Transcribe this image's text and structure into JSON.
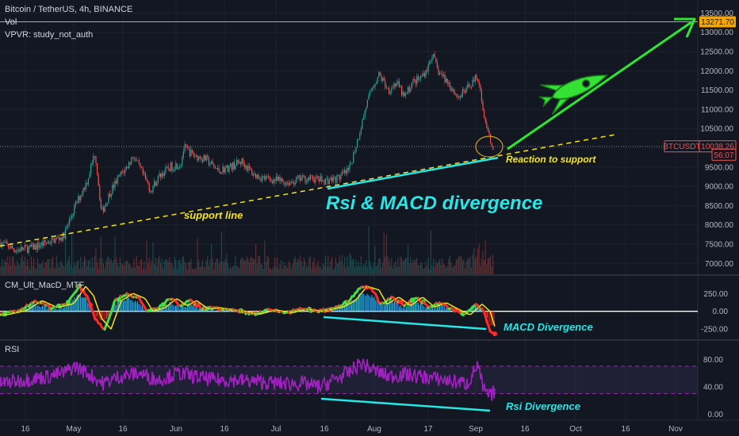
{
  "chart_data": {
    "type": "candlestick",
    "symbol_title": "Bitcoin / TetherUS, 4h, BINANCE",
    "indicators": [
      "Vol",
      "VPVR: study_not_auth"
    ],
    "x_axis": {
      "ticks": [
        "16",
        "May",
        "16",
        "Jun",
        "16",
        "Jul",
        "16",
        "Aug",
        "17",
        "Sep",
        "16",
        "Oct",
        "16",
        "Nov"
      ]
    },
    "price_axis": {
      "ticks": [
        "13500.00",
        "13000.00",
        "12500.00",
        "12000.00",
        "11500.00",
        "11000.00",
        "10500.00",
        "10000.00",
        "9500.00",
        "9000.00",
        "8500.00",
        "8000.00",
        "7500.00",
        "7000.00"
      ],
      "range": [
        6800,
        13550
      ]
    },
    "price_path": [
      [
        0,
        7550
      ],
      [
        20,
        7350
      ],
      [
        40,
        7400
      ],
      [
        60,
        7550
      ],
      [
        80,
        7700
      ],
      [
        95,
        8500
      ],
      [
        110,
        9150
      ],
      [
        120,
        9900
      ],
      [
        128,
        8300
      ],
      [
        140,
        8900
      ],
      [
        152,
        9300
      ],
      [
        160,
        9500
      ],
      [
        168,
        9800
      ],
      [
        178,
        9400
      ],
      [
        190,
        8900
      ],
      [
        202,
        9300
      ],
      [
        215,
        9500
      ],
      [
        228,
        9600
      ],
      [
        232,
        10000
      ],
      [
        245,
        9800
      ],
      [
        260,
        9700
      ],
      [
        275,
        9400
      ],
      [
        290,
        9500
      ],
      [
        305,
        9650
      ],
      [
        320,
        9300
      ],
      [
        335,
        9200
      ],
      [
        350,
        9150
      ],
      [
        365,
        9100
      ],
      [
        380,
        9200
      ],
      [
        395,
        9200
      ],
      [
        410,
        9150
      ],
      [
        425,
        9200
      ],
      [
        440,
        9400
      ],
      [
        452,
        10300
      ],
      [
        462,
        11100
      ],
      [
        470,
        11600
      ],
      [
        478,
        11900
      ],
      [
        490,
        11500
      ],
      [
        500,
        11700
      ],
      [
        510,
        11300
      ],
      [
        520,
        11700
      ],
      [
        530,
        11800
      ],
      [
        540,
        12100
      ],
      [
        545,
        12450
      ],
      [
        552,
        12000
      ],
      [
        565,
        11700
      ],
      [
        578,
        11300
      ],
      [
        590,
        11550
      ],
      [
        602,
        11900
      ],
      [
        606,
        11500
      ],
      [
        612,
        10600
      ],
      [
        617,
        10250
      ],
      [
        622,
        10050
      ]
    ],
    "price_labels": [
      {
        "label": "13271.70",
        "value": 13271.7,
        "style": "resistance"
      },
      {
        "label": "BTCUSDT",
        "value": 10038.26,
        "style": "symbol"
      },
      {
        "label": "10038.26",
        "value": 10038.26,
        "style": "last"
      },
      {
        "label": "56:07",
        "value": 9820,
        "style": "timer"
      }
    ],
    "support_line": {
      "label": "support line",
      "from": [
        0,
        7450
      ],
      "to": [
        775,
        10340
      ]
    },
    "macd_panel": {
      "title": "CM_Ult_MacD_MTF",
      "ticks": [
        "250.00",
        "0.00",
        "-250.00"
      ],
      "range": [
        -360,
        420
      ],
      "zero_line": 0,
      "path": [
        [
          0,
          -50
        ],
        [
          25,
          10
        ],
        [
          45,
          150
        ],
        [
          65,
          50
        ],
        [
          85,
          110
        ],
        [
          100,
          350
        ],
        [
          110,
          220
        ],
        [
          120,
          -100
        ],
        [
          132,
          -250
        ],
        [
          145,
          150
        ],
        [
          160,
          250
        ],
        [
          175,
          180
        ],
        [
          185,
          0
        ],
        [
          200,
          50
        ],
        [
          215,
          180
        ],
        [
          228,
          80
        ],
        [
          240,
          150
        ],
        [
          255,
          30
        ],
        [
          270,
          50
        ],
        [
          285,
          20
        ],
        [
          300,
          0
        ],
        [
          320,
          -40
        ],
        [
          340,
          20
        ],
        [
          360,
          -20
        ],
        [
          380,
          30
        ],
        [
          400,
          0
        ],
        [
          425,
          60
        ],
        [
          440,
          150
        ],
        [
          455,
          350
        ],
        [
          470,
          300
        ],
        [
          480,
          100
        ],
        [
          495,
          200
        ],
        [
          510,
          80
        ],
        [
          525,
          200
        ],
        [
          540,
          60
        ],
        [
          555,
          120
        ],
        [
          570,
          30
        ],
        [
          585,
          -50
        ],
        [
          600,
          100
        ],
        [
          610,
          0
        ],
        [
          618,
          -280
        ],
        [
          624,
          -320
        ]
      ]
    },
    "rsi_panel": {
      "title": "RSI",
      "ticks": [
        "80.00",
        "40.00",
        "0.00"
      ],
      "range": [
        -5,
        100
      ],
      "band": [
        30,
        70
      ],
      "path": [
        [
          0,
          45
        ],
        [
          30,
          50
        ],
        [
          60,
          55
        ],
        [
          80,
          60
        ],
        [
          95,
          70
        ],
        [
          110,
          60
        ],
        [
          130,
          45
        ],
        [
          150,
          55
        ],
        [
          175,
          60
        ],
        [
          200,
          50
        ],
        [
          225,
          60
        ],
        [
          245,
          55
        ],
        [
          270,
          50
        ],
        [
          295,
          50
        ],
        [
          320,
          48
        ],
        [
          350,
          45
        ],
        [
          380,
          45
        ],
        [
          405,
          40
        ],
        [
          420,
          50
        ],
        [
          440,
          60
        ],
        [
          455,
          75
        ],
        [
          470,
          65
        ],
        [
          490,
          55
        ],
        [
          510,
          58
        ],
        [
          530,
          55
        ],
        [
          550,
          52
        ],
        [
          570,
          48
        ],
        [
          590,
          45
        ],
        [
          602,
          72
        ],
        [
          610,
          35
        ],
        [
          618,
          25
        ],
        [
          624,
          35
        ]
      ]
    },
    "annotations": {
      "reaction": "Reaction to support",
      "divergence_title": "Rsi & MACD divergence",
      "macd_divergence": "MACD Divergence",
      "rsi_divergence": "Rsi Divergence"
    },
    "colors": {
      "background": "#131722",
      "bull": "#26a69a",
      "bear": "#ef5350",
      "support": "#f5e61a",
      "divergence": "#26e6e6",
      "arrow": "#2ee62e",
      "rsi": "#9c27b0",
      "resistance": "#f7a600"
    }
  }
}
